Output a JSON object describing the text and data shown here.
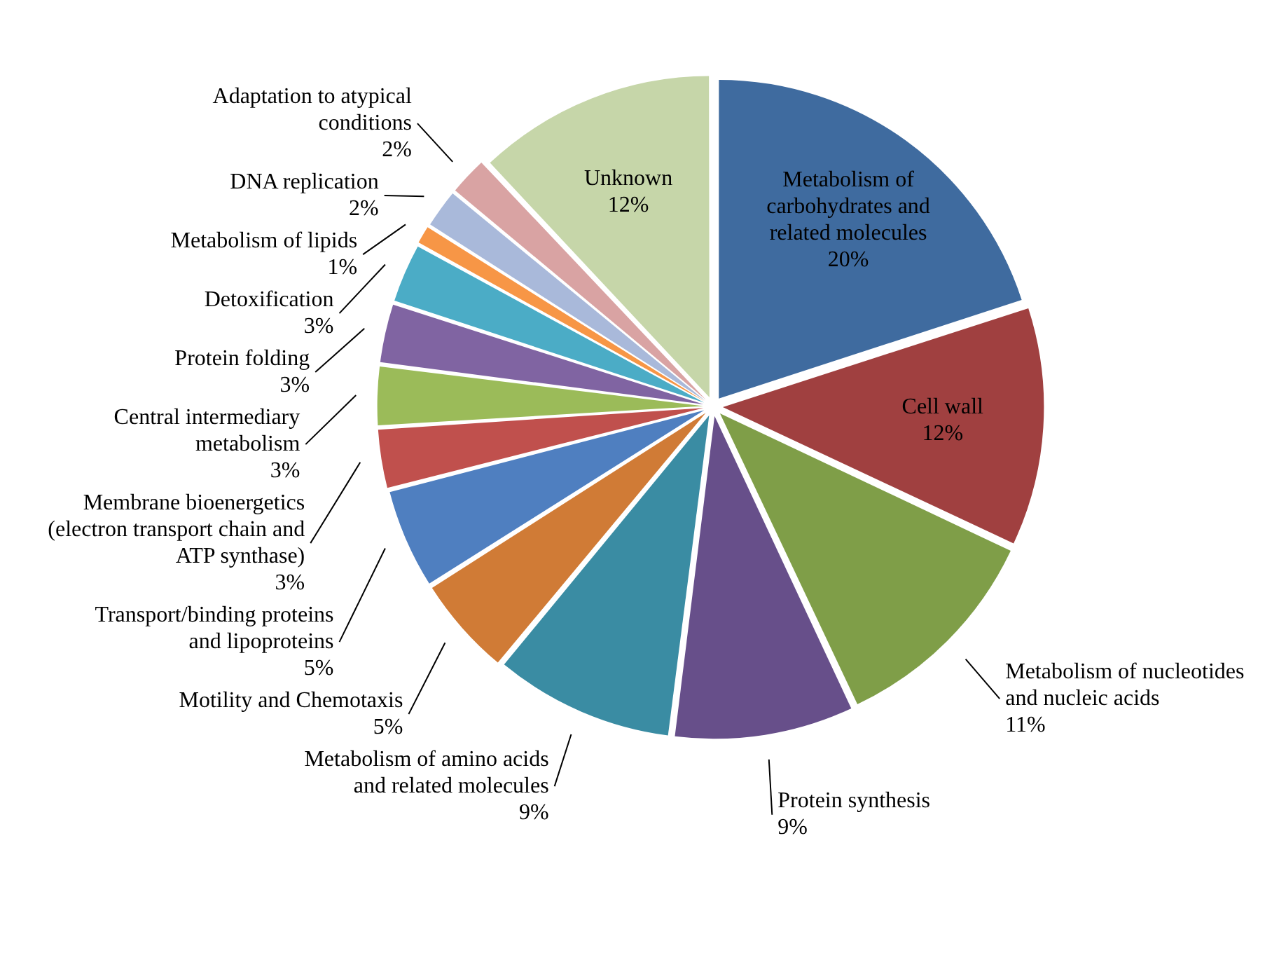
{
  "chart_data": {
    "type": "pie",
    "categories": [
      "Metabolism of carbohydrates and related molecules",
      "Cell wall",
      "Metabolism of nucleotides and nucleic acids",
      "Protein synthesis",
      "Metabolism of amino acids and related molecules",
      "Motility and Chemotaxis",
      "Transport/binding proteins and lipoproteins",
      "Membrane bioenergetics (electron transport chain and ATP synthase)",
      "Central intermediary metabolism",
      "Protein folding",
      "Detoxification",
      "Metabolism of lipids",
      "DNA replication",
      "Adaptation to atypical conditions",
      "Unknown"
    ],
    "values": [
      20,
      12,
      11,
      9,
      9,
      5,
      5,
      3,
      3,
      3,
      3,
      1,
      2,
      2,
      12
    ],
    "colors": [
      "#3f6b9f",
      "#a04040",
      "#7f9e48",
      "#674f8a",
      "#3a8ca3",
      "#d07b36",
      "#4f7fc0",
      "#c0504d",
      "#9bbb59",
      "#8064a2",
      "#4bacc6",
      "#f79646",
      "#a9b9da",
      "#d9a3a3",
      "#c6d6a9"
    ],
    "value_labels": [
      "20%",
      "12%",
      "11%",
      "9%",
      "9%",
      "5%",
      "5%",
      "3%",
      "3%",
      "3%",
      "3%",
      "1%",
      "2%",
      "2%",
      "12%"
    ]
  }
}
